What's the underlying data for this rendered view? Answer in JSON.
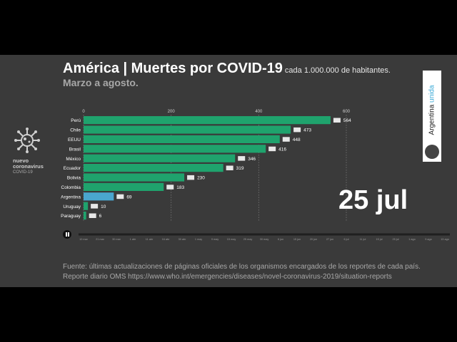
{
  "header": {
    "title": "América | Muertes por COVID-19",
    "subtitle": "cada 1.000.000 de habitantes.",
    "period": "Marzo a agosto."
  },
  "logo": {
    "line1": "nuevo",
    "line2": "coronavirus",
    "line3": "COVID-19"
  },
  "brand": {
    "text_a": "Argentina",
    "text_b": "unida"
  },
  "current_date": "25 jul",
  "source": {
    "line1": "Fuente: últimas actualizaciones de páginas oficiales de los organismos encargados de los reportes de cada país.",
    "line2": "Reporte diario OMS https://www.who.int/emergencies/diseases/novel-coronavirus-2019/situation-reports"
  },
  "timeline_labels": [
    "10 mar",
    "21 mar",
    "30 mar",
    "1 abr",
    "11 abr",
    "16 abr",
    "30 abr",
    "1 may",
    "9 may",
    "15 may",
    "25 may",
    "30 may",
    "6 jun",
    "15 jun",
    "20 jun",
    "27 jun",
    "6 jul",
    "11 jul",
    "15 jul",
    "25 jul",
    "1 ago",
    "9 ago",
    "13 ago"
  ],
  "colors": {
    "bar": "#1fa36d",
    "highlight": "#4aa6cf",
    "bg": "#3a3a3a"
  },
  "chart_data": {
    "type": "bar",
    "orientation": "horizontal",
    "categories": [
      "Perú",
      "Chile",
      "EEUU",
      "Brasil",
      "México",
      "Ecuador",
      "Bolivia",
      "Colombia",
      "Argentina",
      "Uruguay",
      "Paraguay"
    ],
    "values": [
      564,
      473,
      448,
      416,
      346,
      319,
      230,
      183,
      69,
      10,
      6
    ],
    "highlight_category": "Argentina",
    "xlim": [
      0,
      600
    ],
    "xticks": [
      0,
      200,
      400,
      600
    ]
  }
}
